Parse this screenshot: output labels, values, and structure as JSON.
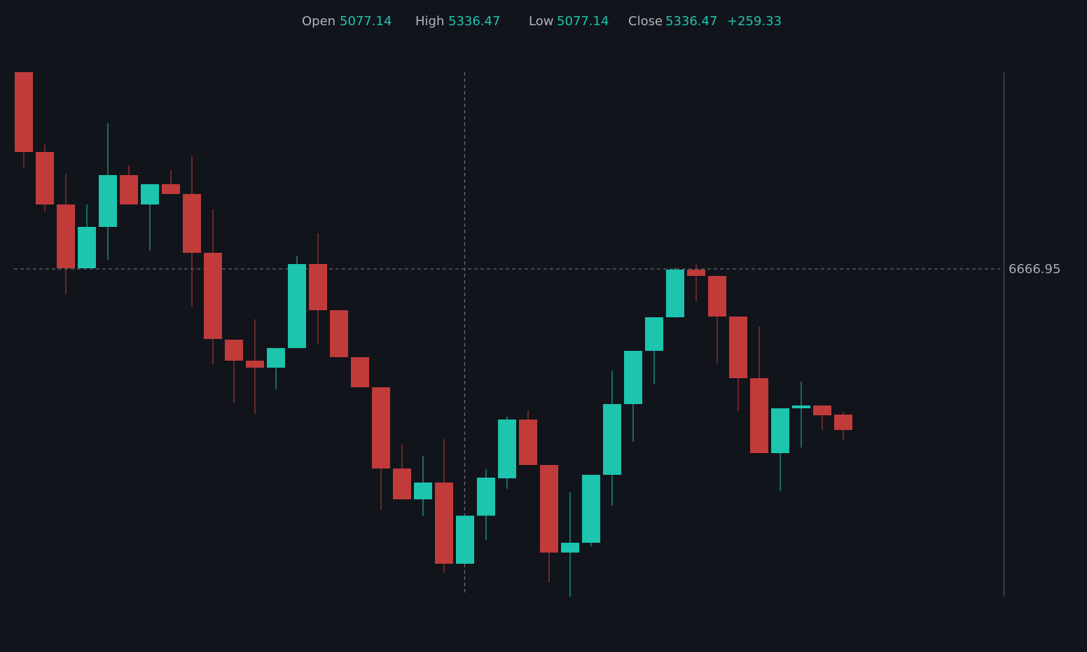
{
  "chart_data": {
    "type": "candlestick",
    "header": {
      "labels": [
        "Open",
        "High",
        "Low",
        "Close"
      ],
      "values": [
        5077.14,
        5336.47,
        5077.14,
        5336.47
      ],
      "change": "+259.33"
    },
    "crosshair": {
      "value": 6666.95
    },
    "up_color": "#1dc4ae",
    "down_color": "#c13b3b",
    "ylim": [
      4888.33,
      7739.43
    ],
    "open": [
      7728.1,
      7297.6,
      7014.38,
      6670.74,
      6893.54,
      7172.99,
      7014.38,
      7123.89,
      7071.03,
      6753.82,
      6285.56,
      6172.27,
      6134.5,
      6240.24,
      6693.4,
      6444.16,
      6191.15,
      6028.77,
      5590.72,
      5424.56,
      5515.19,
      5077.14,
      5336.47,
      5537.85,
      5855.06,
      5609.6,
      5137.56,
      5190.43,
      5556.73,
      5938.12,
      6225.14,
      6406.4,
      6663.19,
      6629.2,
      6410.17,
      6077.86,
      5673.8,
      5915.48,
      5930.58,
      5881.49
    ],
    "high": [
      7728.1,
      7339.14,
      7180.54,
      7014.38,
      7452.43,
      7225.85,
      7123.89,
      7199.42,
      7274.95,
      6987.95,
      6285.56,
      6395.07,
      6240.24,
      6738.71,
      6859.55,
      6444.16,
      6191.15,
      6028.77,
      5719.11,
      5658.69,
      5749.32,
      5336.47,
      5586.94,
      5870.16,
      5904.15,
      5609.6,
      5462.32,
      5556.73,
      6119.4,
      6225.14,
      6406.4,
      6674.51,
      6693.4,
      6629.2,
      6410.17,
      6357.31,
      5915.48,
      6058.98,
      5930.58,
      5896.6
    ],
    "low": [
      7210.75,
      6976.62,
      6531.02,
      6670.74,
      6716.05,
      7014.38,
      6765.15,
      7071.03,
      6463.04,
      6153.39,
      5945.69,
      5885.27,
      6017.44,
      6240.24,
      6259.12,
      6191.15,
      6028.77,
      5367.92,
      5424.56,
      5333.93,
      5028.05,
      5077.14,
      5205.53,
      5481.2,
      5609.6,
      4975.18,
      4899.65,
      5171.55,
      5390.57,
      5734.22,
      6043.87,
      6402.62,
      6493.25,
      6157.16,
      5900.37,
      5673.8,
      5469.88,
      5704.01,
      5798.41,
      5745.55
    ],
    "close": [
      7297.6,
      7014.38,
      6670.74,
      6893.54,
      7172.99,
      7014.38,
      7123.89,
      7071.03,
      6753.82,
      6289.33,
      6172.27,
      6134.5,
      6240.24,
      6693.4,
      6444.16,
      6191.15,
      6028.77,
      5590.72,
      5424.56,
      5515.19,
      5077.14,
      5336.47,
      5541.62,
      5855.06,
      5609.6,
      5137.56,
      5190.43,
      5556.73,
      5938.12,
      6225.14,
      6406.4,
      6663.19,
      6629.2,
      6410.17,
      6077.86,
      5673.8,
      5915.48,
      5930.58,
      5877.72,
      5798.41
    ]
  }
}
